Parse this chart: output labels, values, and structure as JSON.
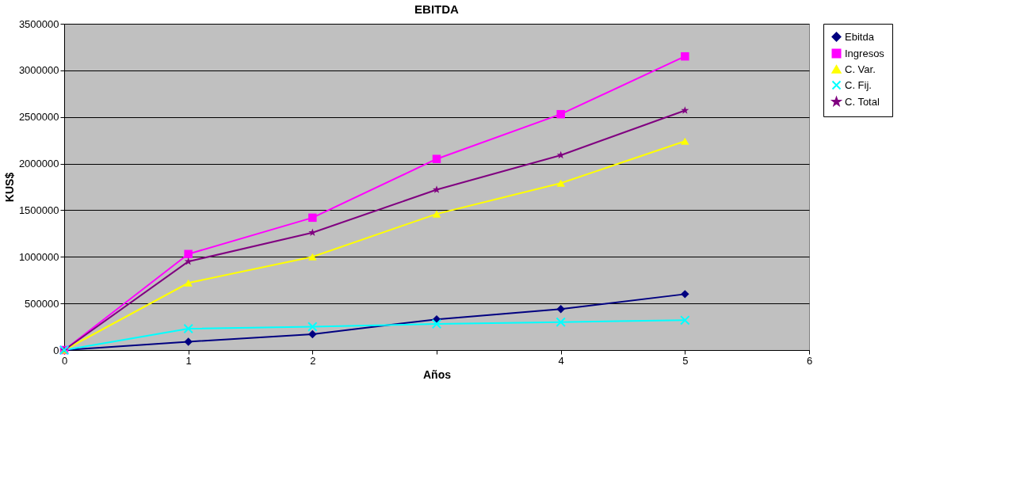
{
  "chart_data": {
    "type": "line",
    "title": "EBITDA",
    "xlabel": "Años",
    "ylabel": "KUS$",
    "x": [
      0,
      1,
      2,
      3,
      4,
      5
    ],
    "xlim": [
      0,
      6
    ],
    "xticks": [
      0,
      1,
      2,
      {
        "value": 3,
        "label": null
      },
      4,
      5,
      6
    ],
    "ylim": [
      0,
      3500000
    ],
    "yticks": [
      0,
      500000,
      1000000,
      1500000,
      2000000,
      2500000,
      3000000,
      3500000
    ],
    "grid": "y",
    "legend": "right",
    "line_style": "solid",
    "series": [
      {
        "name": "Ebitda",
        "color": "#000080",
        "marker": "diamond",
        "values": [
          0,
          90000,
          170000,
          330000,
          440000,
          600000
        ]
      },
      {
        "name": "Ingresos",
        "color": "#ff00ff",
        "marker": "square",
        "values": [
          0,
          1030000,
          1420000,
          2050000,
          2530000,
          3150000
        ]
      },
      {
        "name": "C. Var.",
        "color": "#ffff00",
        "marker": "triangle",
        "values": [
          0,
          720000,
          1000000,
          1460000,
          1790000,
          2240000
        ]
      },
      {
        "name": "C. Fij.",
        "color": "#00ffff",
        "marker": "cross",
        "values": [
          0,
          230000,
          250000,
          280000,
          300000,
          320000
        ]
      },
      {
        "name": "C. Total",
        "color": "#800080",
        "marker": "star",
        "values": [
          0,
          950000,
          1260000,
          1720000,
          2090000,
          2570000
        ]
      }
    ]
  }
}
